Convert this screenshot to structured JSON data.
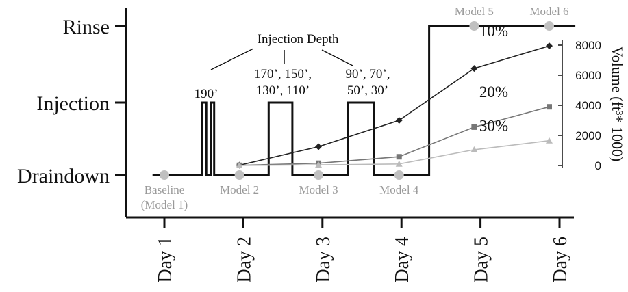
{
  "chart_data": {
    "type": "line",
    "title": "",
    "colors": {
      "axis": "#111111",
      "model_marker": "#c0c0c0",
      "model_text": "#999999",
      "series_10": "#222222",
      "series_20": "#777777",
      "series_30": "#bbbbbb"
    },
    "x_axis": {
      "categories": [
        "Day 1",
        "Day 2",
        "Day 3",
        "Day 4",
        "Day 5",
        "Day 6"
      ]
    },
    "state_axis": {
      "categories": [
        "Draindown",
        "Injection",
        "Rinse"
      ]
    },
    "volume_axis": {
      "label": "Volume (ft³* 1000)",
      "ticks": [
        "0",
        "2000",
        "4000",
        "6000",
        "8000"
      ],
      "range": [
        0,
        8000
      ]
    },
    "operation_schedule": {
      "description_states": "state level over time (days)",
      "points": [
        {
          "day": 0.85,
          "state": "Draindown"
        },
        {
          "day": 1.48,
          "state": "Draindown"
        },
        {
          "day": 1.48,
          "state": "Injection"
        },
        {
          "day": 1.53,
          "state": "Injection"
        },
        {
          "day": 1.53,
          "state": "Draindown"
        },
        {
          "day": 1.59,
          "state": "Draindown"
        },
        {
          "day": 1.59,
          "state": "Injection"
        },
        {
          "day": 1.63,
          "state": "Injection"
        },
        {
          "day": 1.63,
          "state": "Draindown"
        },
        {
          "day": 2.32,
          "state": "Draindown"
        },
        {
          "day": 2.32,
          "state": "Injection"
        },
        {
          "day": 2.62,
          "state": "Injection"
        },
        {
          "day": 2.62,
          "state": "Draindown"
        },
        {
          "day": 3.32,
          "state": "Draindown"
        },
        {
          "day": 3.32,
          "state": "Injection"
        },
        {
          "day": 3.65,
          "state": "Injection"
        },
        {
          "day": 3.65,
          "state": "Draindown"
        },
        {
          "day": 4.35,
          "state": "Draindown"
        },
        {
          "day": 4.35,
          "state": "Rinse"
        },
        {
          "day": 6.2,
          "state": "Rinse"
        }
      ]
    },
    "models": [
      {
        "label": "Baseline",
        "label2": "(Model 1)",
        "day": 1.0,
        "state": "Draindown"
      },
      {
        "label": "Model 2",
        "label2": "",
        "day": 1.95,
        "state": "Draindown"
      },
      {
        "label": "Model 3",
        "label2": "",
        "day": 2.95,
        "state": "Draindown"
      },
      {
        "label": "Model 4",
        "label2": "",
        "day": 3.97,
        "state": "Draindown"
      },
      {
        "label": "Model 5",
        "label2": "",
        "day": 4.92,
        "state": "Rinse"
      },
      {
        "label": "Model 6",
        "label2": "",
        "day": 5.87,
        "state": "Rinse"
      }
    ],
    "injection_depth": {
      "title": "Injection Depth",
      "groups": [
        {
          "lines": [
            "190’"
          ],
          "day": 1.55
        },
        {
          "lines": [
            "170’, 150’,",
            "130’, 110’"
          ],
          "day": 2.47
        },
        {
          "lines": [
            "90’, 70’,",
            "50’, 30’"
          ],
          "day": 3.48
        }
      ]
    },
    "series": [
      {
        "name": "10%",
        "marker": "diamond",
        "days": [
          1.95,
          2.95,
          3.97,
          4.92,
          5.87
        ],
        "values": [
          20,
          1250,
          3000,
          6450,
          7950
        ]
      },
      {
        "name": "20%",
        "marker": "square",
        "days": [
          1.95,
          2.95,
          3.97,
          4.92,
          5.87
        ],
        "values": [
          10,
          150,
          580,
          2550,
          3900
        ]
      },
      {
        "name": "30%",
        "marker": "triangle",
        "days": [
          1.95,
          2.95,
          3.97,
          4.92,
          5.87
        ],
        "values": [
          0,
          40,
          100,
          1050,
          1650
        ]
      }
    ]
  }
}
